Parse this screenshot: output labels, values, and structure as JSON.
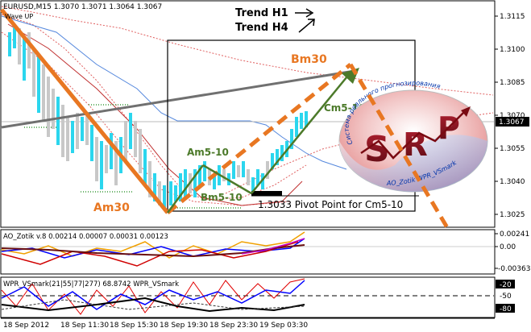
{
  "main_chart": {
    "header": "EURUSD,M15  1.3070 1.3071 1.3064 1.3067",
    "indicator_label": "Wave UP",
    "trend_h1": "Trend H1",
    "trend_h4": "Trend H4",
    "labels": {
      "am30": "Am30",
      "bm30": "Bm30",
      "am5_10": "Am5-10",
      "bm5_10": "Bm5-10",
      "cm5_10": "Cm5-10",
      "pivot": "1.3033 Pivot Point for Cm5-10"
    },
    "price_axis": [
      "1.3115",
      "1.3100",
      "1.3085",
      "1.3070",
      "1.3055",
      "1.3040",
      "1.3025"
    ],
    "current_price": "1.3067"
  },
  "logo": {
    "top_text": "Система реального прогнозирования",
    "letters": [
      "S",
      "R",
      "P"
    ],
    "bottom_text": "AO_Zotik  WPR_VSmark"
  },
  "ao_panel": {
    "header": "AO_Zotik v.8  0.00214 0.00007 0.00031 0.00123",
    "axis": [
      "0.00241",
      "0.00",
      "-0.00363"
    ]
  },
  "wpr_panel": {
    "header": "WPR_VSmark(21|55|77|277)  68.8742  WPR_VSmark",
    "axis": [
      "-20",
      "-50",
      "-80"
    ]
  },
  "time_axis": [
    "18 Sep 2012",
    "18 Sep 11:30",
    "18 Sep 15:30",
    "18 Sep 19:30",
    "18 Sep 23:30",
    "19 Sep 03:30"
  ],
  "colors": {
    "orange": "#e87722",
    "olive": "#4c7a2a",
    "cyan": "#2bd6ee",
    "gray_candle": "#c8c8c8",
    "trend_line": "#666666"
  }
}
